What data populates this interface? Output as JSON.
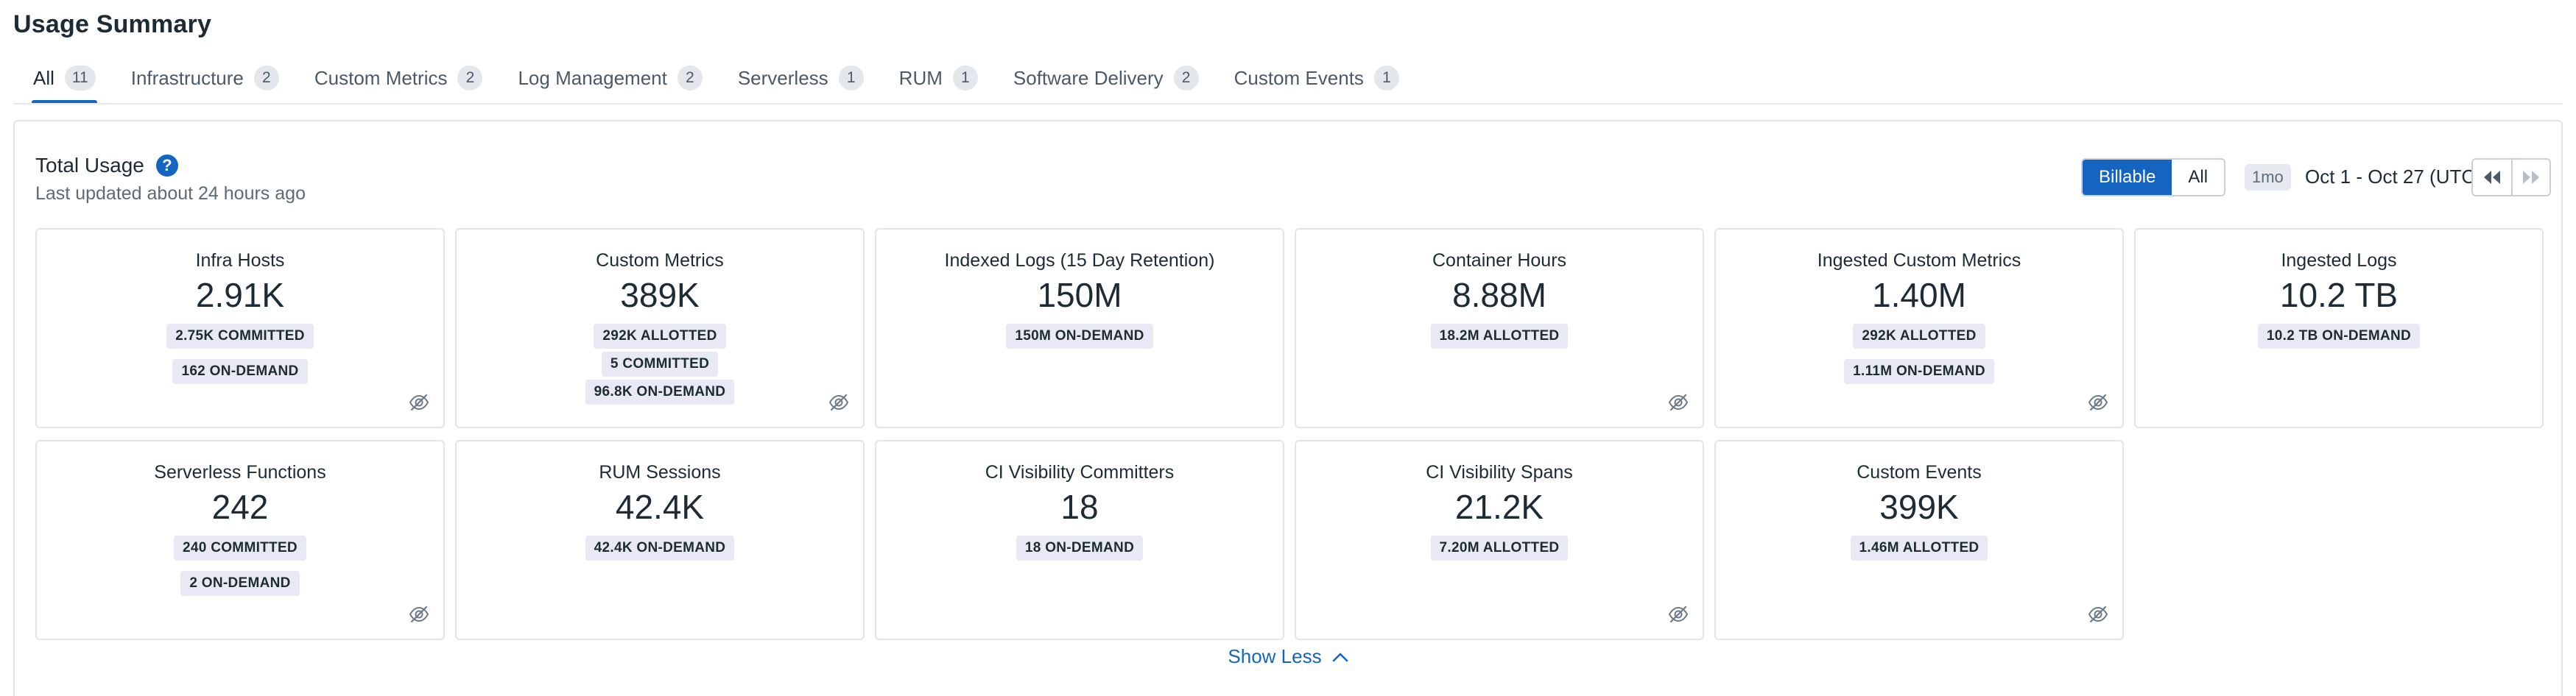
{
  "page": {
    "title": "Usage Summary"
  },
  "tabs": [
    {
      "label": "All",
      "count": "11"
    },
    {
      "label": "Infrastructure",
      "count": "2"
    },
    {
      "label": "Custom Metrics",
      "count": "2"
    },
    {
      "label": "Log Management",
      "count": "2"
    },
    {
      "label": "Serverless",
      "count": "1"
    },
    {
      "label": "RUM",
      "count": "1"
    },
    {
      "label": "Software Delivery",
      "count": "2"
    },
    {
      "label": "Custom Events",
      "count": "1"
    }
  ],
  "active_tab": "All",
  "panel": {
    "title": "Total Usage",
    "help_icon": "question-circle-icon",
    "last_updated": "Last updated about 24 hours ago",
    "toggle": {
      "billable": "Billable",
      "all": "All",
      "selected": "Billable"
    },
    "range_chip": "1mo",
    "date_range": "Oct 1 - Oct 27 (UTC)",
    "prev_icon": "rewind-icon",
    "next_icon": "fast-forward-icon",
    "show_less": "Show Less",
    "show_less_icon": "chevron-up-icon"
  },
  "cards": [
    {
      "title": "Infra Hosts",
      "value": "2.91K",
      "badges": [
        "2.75K COMMITTED",
        "162 ON-DEMAND"
      ],
      "hide_icon": true
    },
    {
      "title": "Custom Metrics",
      "value": "389K",
      "badges": [
        "292K ALLOTTED",
        "5 COMMITTED",
        "96.8K ON-DEMAND"
      ],
      "hide_icon": true
    },
    {
      "title": "Indexed Logs (15 Day Retention)",
      "value": "150M",
      "badges": [
        "150M ON-DEMAND"
      ],
      "hide_icon": false
    },
    {
      "title": "Container Hours",
      "value": "8.88M",
      "badges": [
        "18.2M ALLOTTED"
      ],
      "hide_icon": true
    },
    {
      "title": "Ingested Custom Metrics",
      "value": "1.40M",
      "badges": [
        "292K ALLOTTED",
        "1.11M ON-DEMAND"
      ],
      "hide_icon": true
    },
    {
      "title": "Ingested Logs",
      "value": "10.2 TB",
      "badges": [
        "10.2 TB ON-DEMAND"
      ],
      "hide_icon": false
    },
    {
      "title": "Serverless Functions",
      "value": "242",
      "badges": [
        "240 COMMITTED",
        "2 ON-DEMAND"
      ],
      "hide_icon": true
    },
    {
      "title": "RUM Sessions",
      "value": "42.4K",
      "badges": [
        "42.4K ON-DEMAND"
      ],
      "hide_icon": false
    },
    {
      "title": "CI Visibility Committers",
      "value": "18",
      "badges": [
        "18 ON-DEMAND"
      ],
      "hide_icon": false
    },
    {
      "title": "CI Visibility Spans",
      "value": "21.2K",
      "badges": [
        "7.20M ALLOTTED"
      ],
      "hide_icon": true
    },
    {
      "title": "Custom Events",
      "value": "399K",
      "badges": [
        "1.46M ALLOTTED"
      ],
      "hide_icon": true
    }
  ],
  "colors": {
    "accent": "#1565c0",
    "badge_bg": "#e8e9f4",
    "tab_count_bg": "#e3e6eb",
    "border": "#e1e5ea"
  }
}
